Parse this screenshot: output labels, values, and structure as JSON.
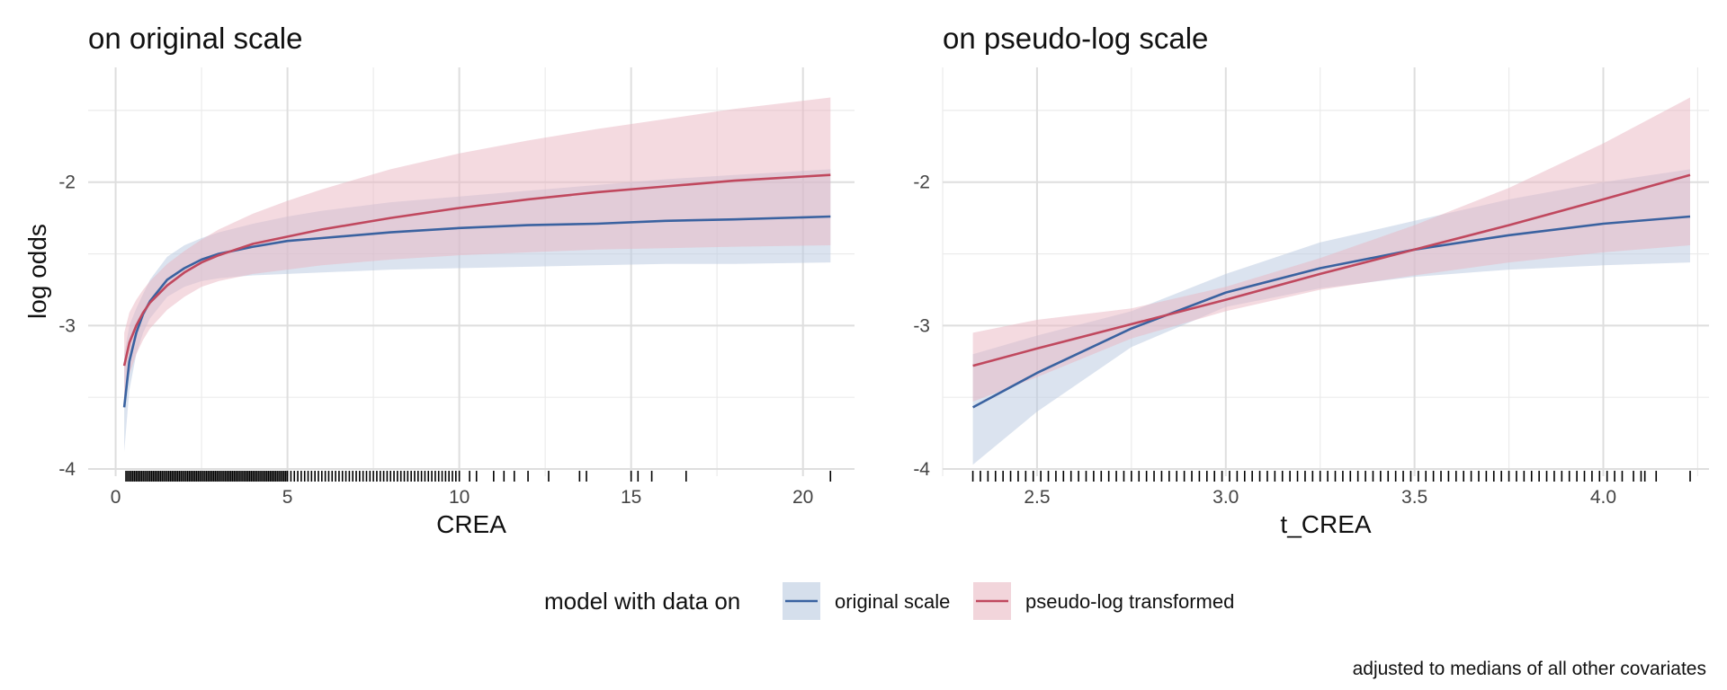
{
  "chart_data": [
    {
      "type": "line",
      "title": "on original scale",
      "xlabel": "CREA",
      "ylabel": "log odds",
      "xlim": [
        -0.8,
        21.5
      ],
      "ylim": [
        -4.05,
        -1.2
      ],
      "x_ticks": [
        0,
        5,
        10,
        15,
        20
      ],
      "x_tick_labels": [
        "0",
        "5",
        "10",
        "15",
        "20"
      ],
      "y_ticks": [
        -4,
        -3,
        -2
      ],
      "y_tick_labels": [
        "-4",
        "-3",
        "-2"
      ],
      "grid": true,
      "series": [
        {
          "name": "original scale",
          "color": "#3a62a0",
          "x": [
            0.25,
            0.4,
            0.6,
            0.8,
            1.0,
            1.5,
            2.0,
            2.5,
            3.0,
            4.0,
            5.0,
            6.0,
            8.0,
            10.0,
            12.0,
            14.0,
            16.0,
            18.0,
            20.8
          ],
          "y": [
            -3.57,
            -3.25,
            -3.05,
            -2.92,
            -2.83,
            -2.68,
            -2.6,
            -2.54,
            -2.5,
            -2.45,
            -2.41,
            -2.39,
            -2.35,
            -2.32,
            -2.3,
            -2.29,
            -2.27,
            -2.26,
            -2.24
          ],
          "lower": [
            -3.88,
            -3.45,
            -3.2,
            -3.05,
            -2.95,
            -2.8,
            -2.73,
            -2.69,
            -2.67,
            -2.65,
            -2.64,
            -2.63,
            -2.61,
            -2.6,
            -2.59,
            -2.58,
            -2.57,
            -2.57,
            -2.56
          ],
          "upper": [
            -3.2,
            -3.0,
            -2.88,
            -2.78,
            -2.68,
            -2.52,
            -2.44,
            -2.39,
            -2.35,
            -2.29,
            -2.24,
            -2.2,
            -2.14,
            -2.1,
            -2.06,
            -2.02,
            -1.98,
            -1.95,
            -1.91
          ]
        },
        {
          "name": "pseudo-log transformed",
          "color": "#c0485e",
          "x": [
            0.25,
            0.4,
            0.6,
            0.8,
            1.0,
            1.5,
            2.0,
            2.5,
            3.0,
            4.0,
            5.0,
            6.0,
            8.0,
            10.0,
            12.0,
            14.0,
            16.0,
            18.0,
            20.8
          ],
          "y": [
            -3.28,
            -3.12,
            -3.0,
            -2.91,
            -2.84,
            -2.72,
            -2.63,
            -2.56,
            -2.51,
            -2.43,
            -2.38,
            -2.33,
            -2.25,
            -2.18,
            -2.12,
            -2.07,
            -2.03,
            -1.99,
            -1.95
          ],
          "lower": [
            -3.53,
            -3.34,
            -3.2,
            -3.1,
            -3.02,
            -2.89,
            -2.8,
            -2.73,
            -2.69,
            -2.64,
            -2.61,
            -2.58,
            -2.54,
            -2.51,
            -2.49,
            -2.47,
            -2.46,
            -2.45,
            -2.44
          ],
          "upper": [
            -3.05,
            -2.91,
            -2.82,
            -2.75,
            -2.69,
            -2.57,
            -2.48,
            -2.4,
            -2.33,
            -2.22,
            -2.13,
            -2.05,
            -1.91,
            -1.8,
            -1.71,
            -1.63,
            -1.56,
            -1.49,
            -1.41
          ]
        }
      ],
      "rug_x": [
        0.3,
        0.35,
        0.4,
        0.45,
        0.5,
        0.55,
        0.6,
        0.65,
        0.7,
        0.75,
        0.8,
        0.85,
        0.9,
        0.95,
        1.0,
        1.05,
        1.1,
        1.15,
        1.2,
        1.25,
        1.3,
        1.35,
        1.4,
        1.45,
        1.5,
        1.55,
        1.6,
        1.65,
        1.7,
        1.75,
        1.8,
        1.85,
        1.9,
        1.95,
        2.0,
        2.05,
        2.1,
        2.15,
        2.2,
        2.25,
        2.3,
        2.35,
        2.4,
        2.45,
        2.5,
        2.55,
        2.6,
        2.65,
        2.7,
        2.75,
        2.8,
        2.85,
        2.9,
        2.95,
        3.0,
        3.05,
        3.1,
        3.15,
        3.2,
        3.25,
        3.3,
        3.35,
        3.4,
        3.45,
        3.5,
        3.55,
        3.6,
        3.65,
        3.7,
        3.75,
        3.8,
        3.85,
        3.9,
        3.95,
        4.0,
        4.05,
        4.1,
        4.15,
        4.2,
        4.25,
        4.3,
        4.35,
        4.4,
        4.45,
        4.5,
        4.55,
        4.6,
        4.65,
        4.7,
        4.75,
        4.8,
        4.85,
        4.9,
        4.95,
        5.0,
        5.1,
        5.2,
        5.3,
        5.4,
        5.5,
        5.6,
        5.7,
        5.8,
        5.9,
        6.0,
        6.1,
        6.2,
        6.3,
        6.4,
        6.5,
        6.6,
        6.7,
        6.8,
        6.9,
        7.0,
        7.1,
        7.2,
        7.3,
        7.4,
        7.5,
        7.6,
        7.7,
        7.8,
        7.9,
        8.0,
        8.1,
        8.2,
        8.3,
        8.4,
        8.5,
        8.6,
        8.7,
        8.8,
        8.9,
        9.0,
        9.1,
        9.2,
        9.3,
        9.4,
        9.5,
        9.6,
        9.7,
        9.8,
        9.9,
        10.0,
        10.3,
        10.5,
        11.0,
        11.3,
        11.6,
        12.0,
        12.6,
        13.5,
        13.7,
        15.0,
        15.2,
        15.6,
        16.6,
        20.8
      ]
    },
    {
      "type": "line",
      "title": "on pseudo-log scale",
      "xlabel": "t_CREA",
      "ylabel": "",
      "xlim": [
        2.25,
        4.28
      ],
      "ylim": [
        -4.05,
        -1.2
      ],
      "x_ticks": [
        2.5,
        3.0,
        3.5,
        4.0
      ],
      "x_tick_labels": [
        "2.5",
        "3.0",
        "3.5",
        "4.0"
      ],
      "y_ticks": [
        -4,
        -3,
        -2
      ],
      "y_tick_labels": [
        "-4",
        "-3",
        "-2"
      ],
      "grid": true,
      "series": [
        {
          "name": "original scale",
          "color": "#3a62a0",
          "x": [
            2.33,
            2.5,
            2.75,
            3.0,
            3.25,
            3.5,
            3.75,
            4.0,
            4.23
          ],
          "y": [
            -3.57,
            -3.33,
            -3.02,
            -2.77,
            -2.6,
            -2.47,
            -2.37,
            -2.29,
            -2.24
          ],
          "lower": [
            -3.97,
            -3.6,
            -3.15,
            -2.87,
            -2.74,
            -2.66,
            -2.61,
            -2.58,
            -2.56
          ],
          "upper": [
            -3.2,
            -3.07,
            -2.9,
            -2.64,
            -2.42,
            -2.27,
            -2.12,
            -2.0,
            -1.91
          ]
        },
        {
          "name": "pseudo-log transformed",
          "color": "#c0485e",
          "x": [
            2.33,
            2.5,
            2.75,
            3.0,
            3.25,
            3.5,
            3.75,
            4.0,
            4.23
          ],
          "y": [
            -3.28,
            -3.16,
            -2.99,
            -2.82,
            -2.64,
            -2.47,
            -2.3,
            -2.12,
            -1.95
          ],
          "lower": [
            -3.53,
            -3.36,
            -3.09,
            -2.9,
            -2.75,
            -2.65,
            -2.56,
            -2.49,
            -2.44
          ],
          "upper": [
            -3.05,
            -2.96,
            -2.88,
            -2.73,
            -2.53,
            -2.3,
            -2.04,
            -1.73,
            -1.41
          ]
        }
      ],
      "rug_x": [
        2.33,
        2.35,
        2.37,
        2.39,
        2.41,
        2.43,
        2.45,
        2.47,
        2.49,
        2.51,
        2.53,
        2.55,
        2.57,
        2.59,
        2.61,
        2.63,
        2.65,
        2.67,
        2.69,
        2.71,
        2.73,
        2.75,
        2.77,
        2.79,
        2.81,
        2.83,
        2.85,
        2.87,
        2.89,
        2.91,
        2.93,
        2.95,
        2.97,
        2.99,
        3.01,
        3.03,
        3.05,
        3.07,
        3.09,
        3.11,
        3.13,
        3.15,
        3.17,
        3.19,
        3.21,
        3.23,
        3.25,
        3.27,
        3.29,
        3.31,
        3.33,
        3.35,
        3.37,
        3.39,
        3.41,
        3.43,
        3.45,
        3.47,
        3.49,
        3.51,
        3.53,
        3.55,
        3.57,
        3.59,
        3.61,
        3.63,
        3.65,
        3.67,
        3.69,
        3.71,
        3.73,
        3.75,
        3.77,
        3.79,
        3.81,
        3.83,
        3.85,
        3.87,
        3.89,
        3.91,
        3.93,
        3.95,
        3.97,
        3.99,
        4.01,
        4.03,
        4.05,
        4.08,
        4.1,
        4.11,
        4.14,
        4.23
      ]
    }
  ],
  "legend": {
    "title": "model with data on",
    "items": [
      {
        "label": "original scale",
        "line_color": "#3a62a0",
        "fill_color": "#d5dfec"
      },
      {
        "label": "pseudo-log transformed",
        "line_color": "#c0485e",
        "fill_color": "#f2d5db"
      }
    ]
  },
  "caption": "adjusted to medians of all other covariates"
}
